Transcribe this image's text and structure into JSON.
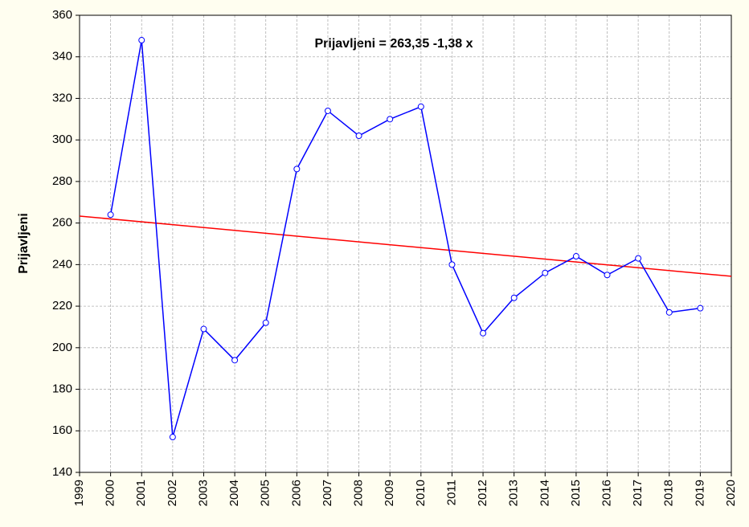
{
  "chart_data": {
    "type": "line",
    "ylabel": "Prijavljeni",
    "annotation": "Prijavljeni = 263,35 -1,38 x",
    "x": [
      2000,
      2001,
      2002,
      2003,
      2004,
      2005,
      2006,
      2007,
      2008,
      2009,
      2010,
      2011,
      2012,
      2013,
      2014,
      2015,
      2016,
      2017,
      2018,
      2019
    ],
    "series": [
      {
        "color": "#0000ff",
        "values": [
          264,
          348,
          157,
          209,
          194,
          212,
          286,
          314,
          302,
          310,
          316,
          240,
          207,
          224,
          236,
          244,
          235,
          243,
          217,
          219
        ]
      }
    ],
    "trend": {
      "intercept": 263.35,
      "slope": -1.38,
      "color": "#ff0000"
    },
    "xlim": [
      1999,
      2020
    ],
    "xticks": [
      1999,
      2000,
      2001,
      2002,
      2003,
      2004,
      2005,
      2006,
      2007,
      2008,
      2009,
      2010,
      2011,
      2012,
      2013,
      2014,
      2015,
      2016,
      2017,
      2018,
      2019,
      2020
    ],
    "ylim": [
      140,
      360
    ],
    "yticks": [
      140,
      160,
      180,
      200,
      220,
      240,
      260,
      280,
      300,
      320,
      340,
      360
    ],
    "grid": true
  }
}
